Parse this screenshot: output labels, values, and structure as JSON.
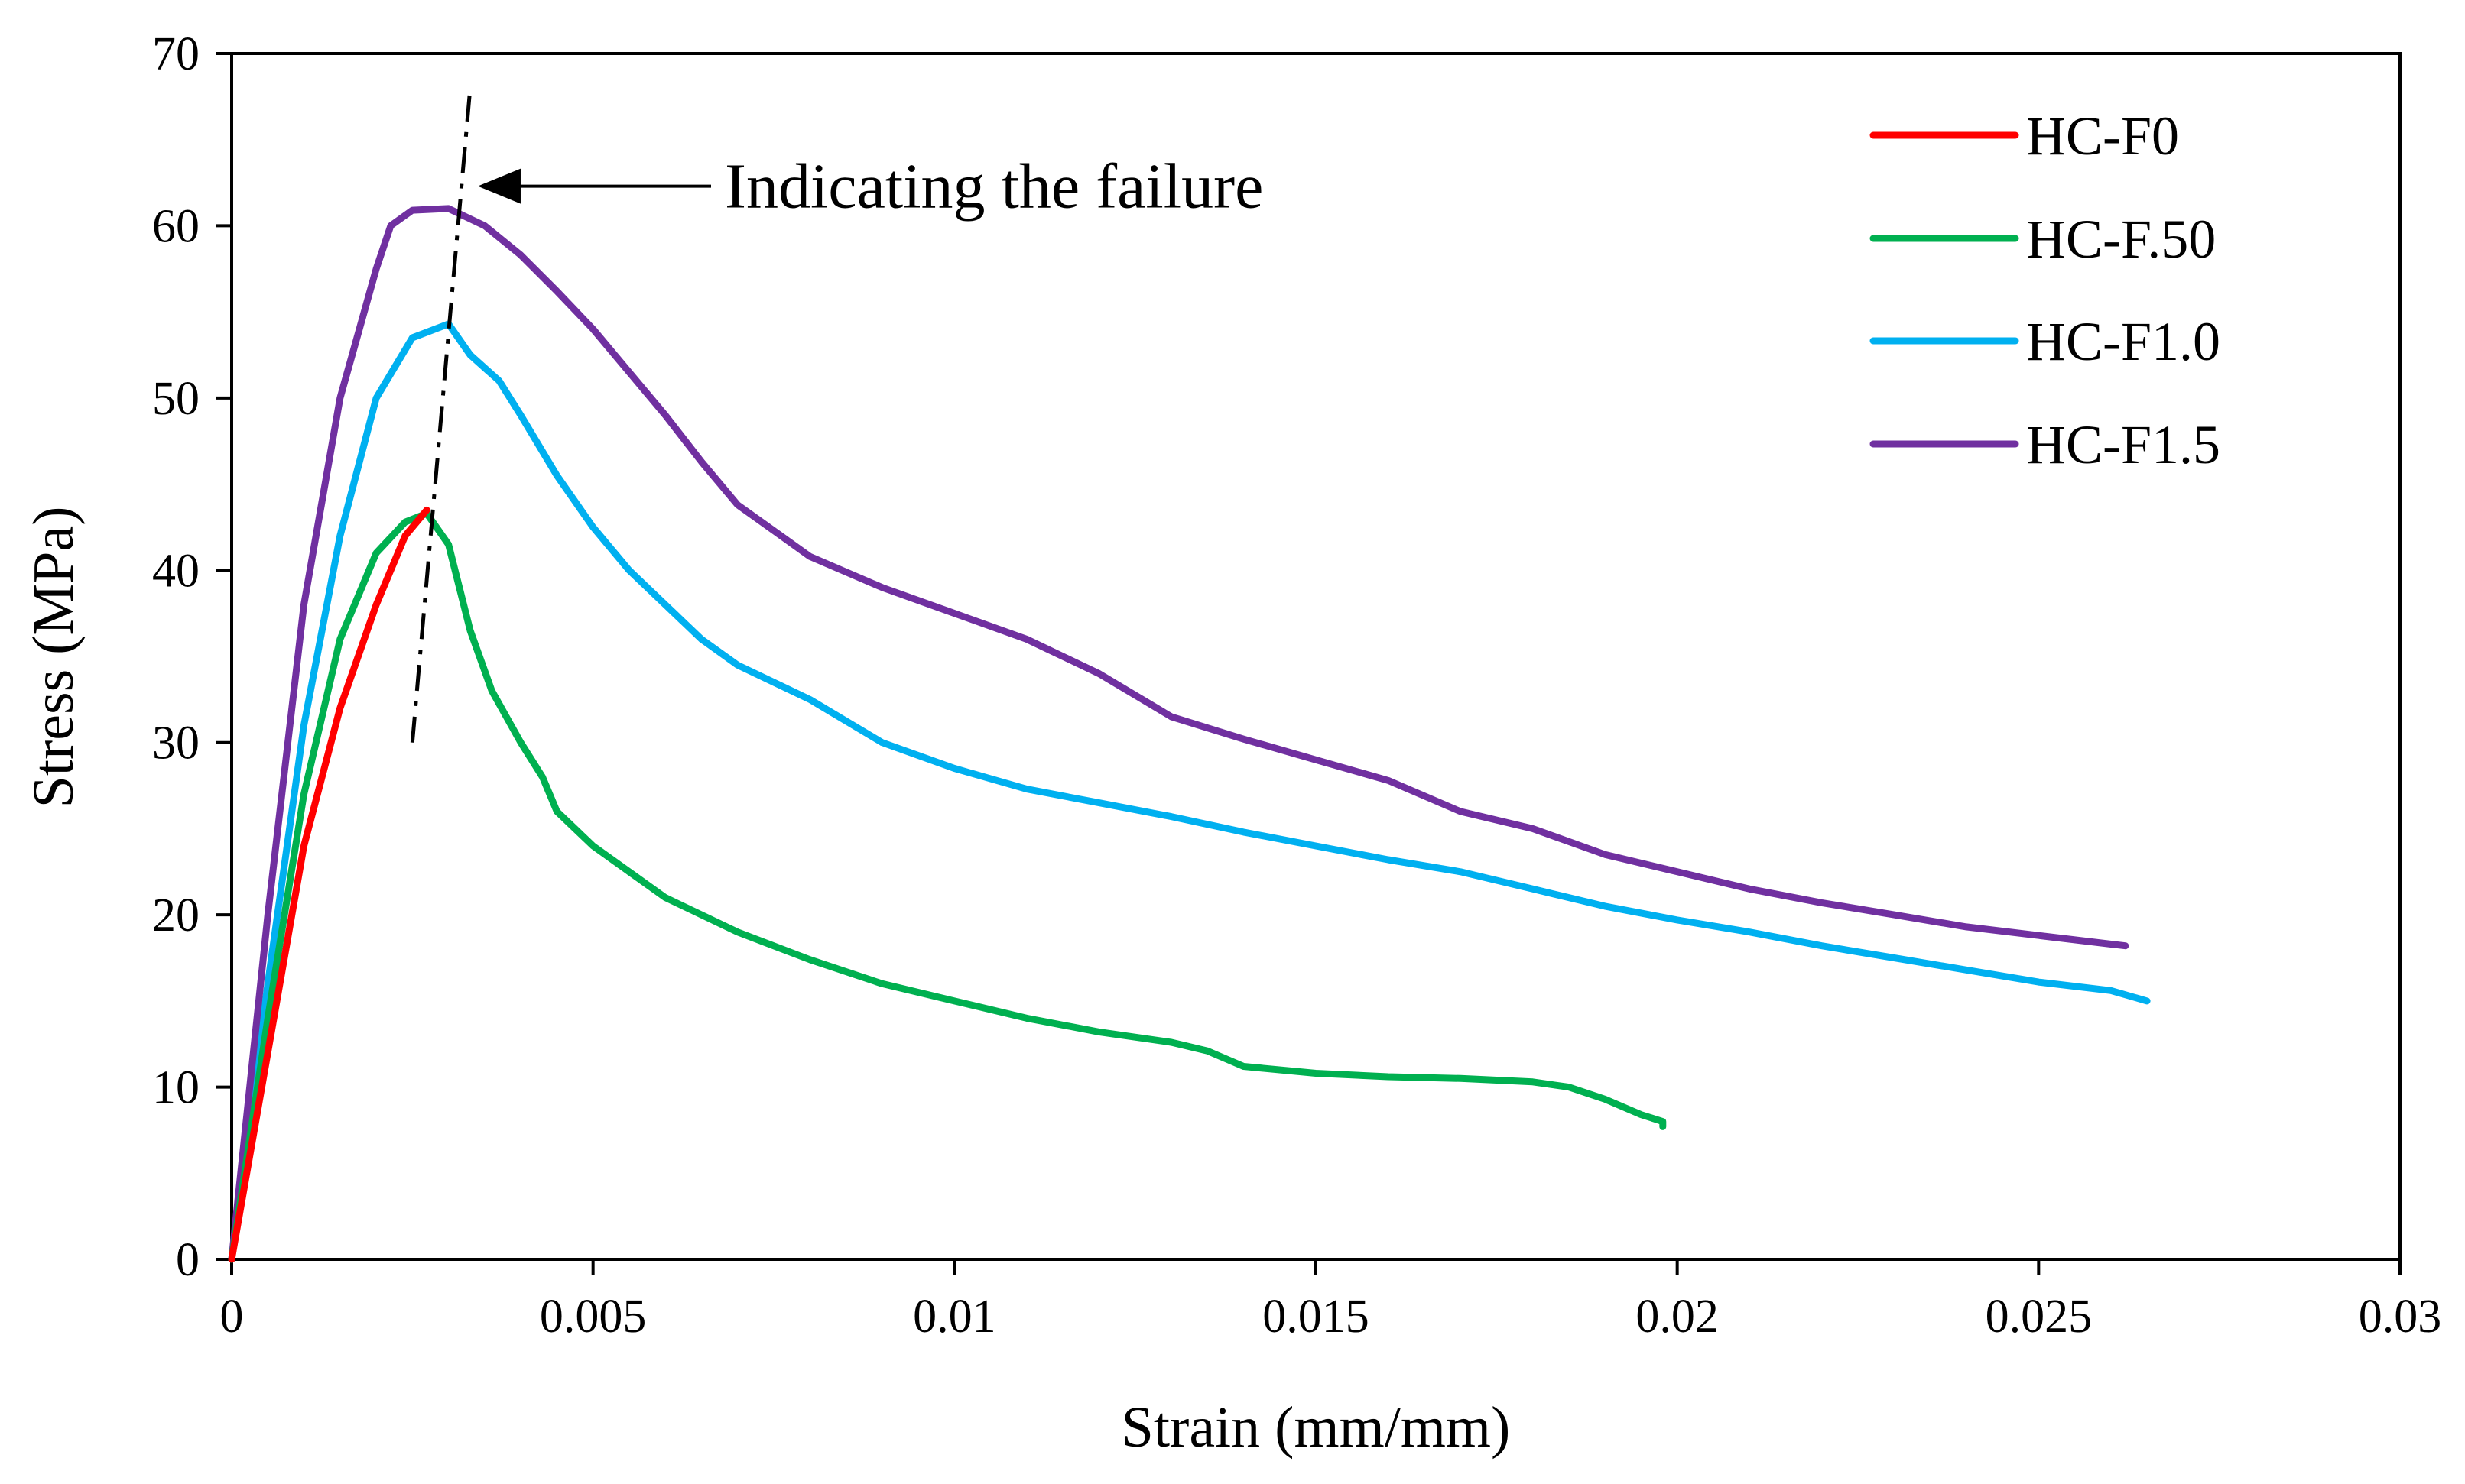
{
  "chart_data": {
    "type": "line",
    "title": "",
    "xlabel": "Strain (mm/mm)",
    "ylabel": "Stress (MPa)",
    "xlim": [
      0,
      0.03
    ],
    "ylim": [
      0,
      70
    ],
    "grid": false,
    "legend_position": "top-right",
    "x_ticks": [
      {
        "value": 0,
        "label": "0"
      },
      {
        "value": 0.005,
        "label": "0.005"
      },
      {
        "value": 0.01,
        "label": "0.01"
      },
      {
        "value": 0.015,
        "label": "0.015"
      },
      {
        "value": 0.02,
        "label": "0.02"
      },
      {
        "value": 0.025,
        "label": "0.025"
      },
      {
        "value": 0.03,
        "label": "0.03"
      }
    ],
    "y_ticks": [
      {
        "value": 0,
        "label": "0"
      },
      {
        "value": 10,
        "label": "10"
      },
      {
        "value": 20,
        "label": "20"
      },
      {
        "value": 30,
        "label": "30"
      },
      {
        "value": 40,
        "label": "40"
      },
      {
        "value": 50,
        "label": "50"
      },
      {
        "value": 60,
        "label": "60"
      },
      {
        "value": 70,
        "label": "70"
      }
    ],
    "series": [
      {
        "name": "HC-F0",
        "color": "#ff0000",
        "x": [
          0,
          0.0005,
          0.001,
          0.0015,
          0.002,
          0.0024,
          0.0027
        ],
        "y": [
          0,
          12,
          24,
          32,
          38,
          42,
          43.5
        ]
      },
      {
        "name": "HC-F.50",
        "color": "#00b050",
        "x": [
          0,
          0.0005,
          0.001,
          0.0015,
          0.002,
          0.0024,
          0.0027,
          0.003,
          0.0033,
          0.0036,
          0.004,
          0.0043,
          0.0045,
          0.005,
          0.0055,
          0.006,
          0.007,
          0.008,
          0.009,
          0.01,
          0.011,
          0.012,
          0.013,
          0.0135,
          0.014,
          0.015,
          0.016,
          0.017,
          0.018,
          0.0185,
          0.019,
          0.0195,
          0.0198,
          0.0198
        ],
        "y": [
          0,
          14,
          27,
          36,
          41,
          42.8,
          43.3,
          41.5,
          36.5,
          33,
          30,
          28,
          26,
          24,
          22.5,
          21,
          19,
          17.4,
          16,
          15,
          14,
          13.2,
          12.6,
          12.1,
          11.2,
          10.8,
          10.6,
          10.5,
          10.3,
          10,
          9.3,
          8.4,
          8,
          7.7
        ]
      },
      {
        "name": "HC-F1.0",
        "color": "#00b0f0",
        "x": [
          0,
          0.0005,
          0.001,
          0.0015,
          0.002,
          0.0025,
          0.003,
          0.0033,
          0.0037,
          0.004,
          0.0045,
          0.005,
          0.0055,
          0.006,
          0.0065,
          0.007,
          0.008,
          0.009,
          0.01,
          0.011,
          0.012,
          0.013,
          0.014,
          0.015,
          0.016,
          0.017,
          0.018,
          0.019,
          0.02,
          0.021,
          0.022,
          0.023,
          0.024,
          0.025,
          0.026,
          0.0265
        ],
        "y": [
          0,
          16,
          31,
          42,
          50,
          53.5,
          54.3,
          52.5,
          51,
          49,
          45.5,
          42.5,
          40,
          38,
          36,
          34.5,
          32.5,
          30,
          28.5,
          27.3,
          26.5,
          25.7,
          24.8,
          24,
          23.2,
          22.5,
          21.5,
          20.5,
          19.7,
          19,
          18.2,
          17.5,
          16.8,
          16.1,
          15.6,
          15
        ]
      },
      {
        "name": "HC-F1.5",
        "color": "#7030a0",
        "x": [
          0,
          0.0005,
          0.001,
          0.0015,
          0.0018,
          0.002,
          0.0022,
          0.0025,
          0.003,
          0.0035,
          0.004,
          0.0045,
          0.005,
          0.0055,
          0.006,
          0.0065,
          0.007,
          0.0075,
          0.008,
          0.009,
          0.01,
          0.011,
          0.012,
          0.013,
          0.014,
          0.015,
          0.016,
          0.017,
          0.018,
          0.019,
          0.02,
          0.021,
          0.022,
          0.023,
          0.024,
          0.025,
          0.026,
          0.0262
        ],
        "y": [
          0,
          20,
          38,
          50,
          54.5,
          57.5,
          60,
          60.9,
          61,
          60,
          58.3,
          56.2,
          54,
          51.5,
          49,
          46.3,
          43.8,
          42.3,
          40.8,
          39,
          37.5,
          36,
          34,
          31.5,
          30.2,
          29,
          27.8,
          26,
          25,
          23.5,
          22.5,
          21.5,
          20.7,
          20,
          19.3,
          18.8,
          18.3,
          18.2
        ]
      }
    ],
    "failure_line": {
      "x": [
        0.0025,
        0.0033
      ],
      "y": [
        30,
        68
      ]
    },
    "annotation": {
      "text": "Indicating the failure",
      "arrow_to": {
        "x": 0.0033,
        "y": 62.3
      }
    }
  }
}
